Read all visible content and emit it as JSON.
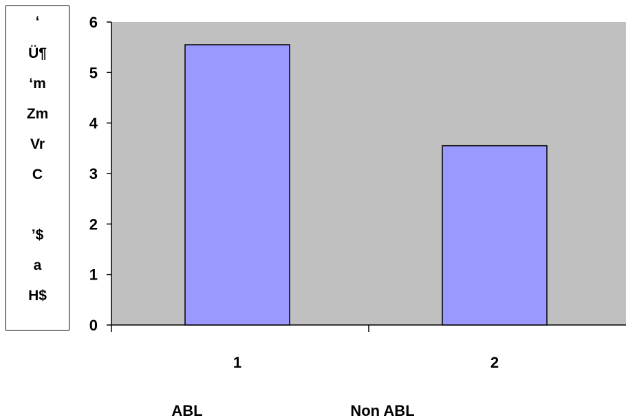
{
  "ylabel_lines": [
    "ʻ",
    "Ü¶",
    "ʻm",
    "Zm",
    "Vr",
    "C",
    "",
    "ʼ$",
    "a",
    "H$"
  ],
  "group_labels": [
    "ABL",
    "Non ABL"
  ],
  "colors": {
    "plot_bg": "#c0c0c0",
    "bar_fill": "#9999ff",
    "bar_stroke": "#000000"
  },
  "chart_data": {
    "type": "bar",
    "categories": [
      "1",
      "2"
    ],
    "values": [
      5.55,
      3.55
    ],
    "title": "",
    "xlabel": "",
    "ylabel": "ʻ Ü¶ ʻm Zm Vr C ʼ$ a H$",
    "ylim": [
      0,
      6
    ],
    "yticks": [
      0,
      1,
      2,
      3,
      4,
      5,
      6
    ],
    "grid": false,
    "legend": "none"
  }
}
